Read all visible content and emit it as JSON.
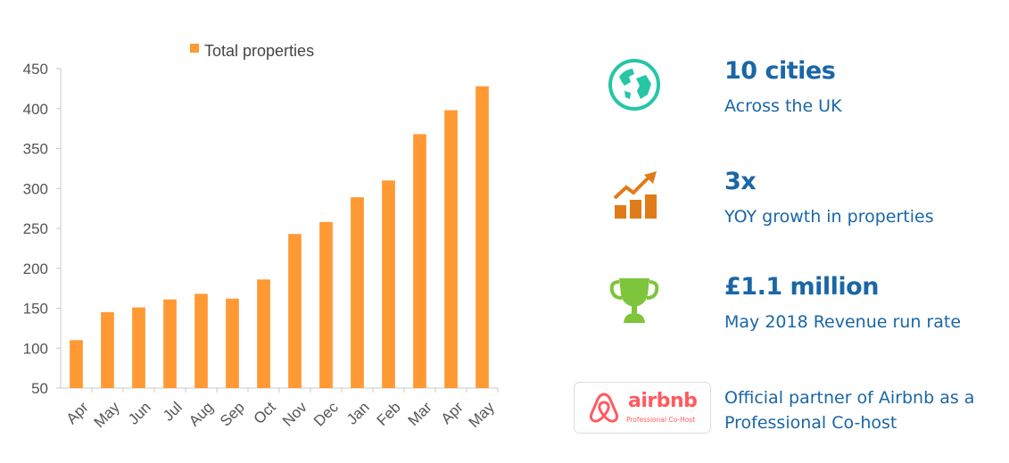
{
  "chart_data": {
    "type": "bar",
    "categories": [
      "Apr",
      "May",
      "Jun",
      "Jul",
      "Aug",
      "Sep",
      "Oct",
      "Nov",
      "Dec",
      "Jan",
      "Feb",
      "Mar",
      "Apr",
      "May"
    ],
    "series": [
      {
        "name": "Total properties",
        "values": [
          110,
          145,
          151,
          161,
          168,
          162,
          186,
          243,
          258,
          289,
          310,
          368,
          398,
          428
        ],
        "color": "#ff9933"
      }
    ],
    "yticks": [
      "50",
      "100",
      "150",
      "200",
      "250",
      "300",
      "350",
      "400",
      "450"
    ],
    "ylim": [
      50,
      450
    ],
    "legend": "top",
    "grid": false
  },
  "stats": [
    {
      "icon": "globe-icon",
      "title": "10 cities",
      "subtitle": "Across the UK"
    },
    {
      "icon": "growth-chart-icon",
      "title": "3x",
      "subtitle": "YOY growth in properties"
    },
    {
      "icon": "trophy-icon",
      "title": "£1.1 million",
      "subtitle": "May 2018 Revenue run rate"
    }
  ],
  "partner": {
    "logo_word": "airbnb",
    "logo_tagline": "Professional Co-Host",
    "text": "Official partner of Airbnb as a Professional Co-host"
  },
  "colors": {
    "bar": "#ff9933",
    "accent_text": "#1a66a6",
    "globe": "#26c6a6",
    "growth": "#e07b1a",
    "trophy": "#7dc53b",
    "airbnb": "#ff5a5f"
  }
}
